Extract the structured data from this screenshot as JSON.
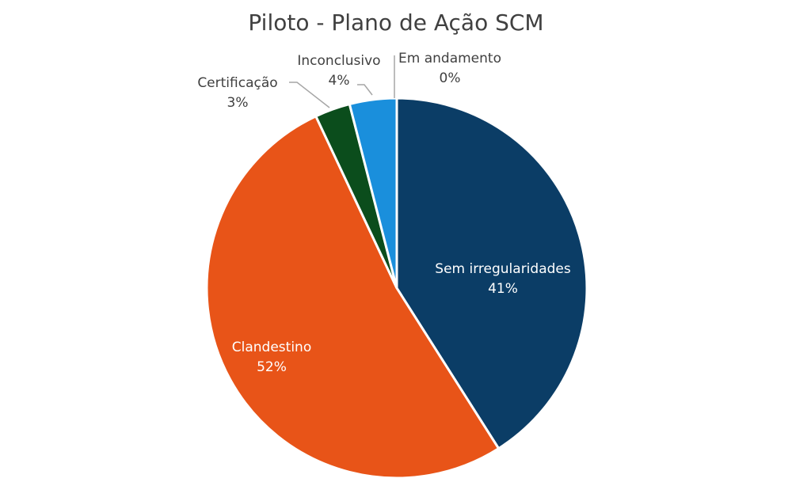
{
  "chart_data": {
    "type": "pie",
    "title": "Piloto - Plano de Ação SCM",
    "slices": [
      {
        "label": "Sem irregularidades",
        "value": 41,
        "display": "41%",
        "color": "#0b3d66",
        "label_inside": true
      },
      {
        "label": "Clandestino",
        "value": 52,
        "display": "52%",
        "color": "#e85418",
        "label_inside": true
      },
      {
        "label": "Certificação",
        "value": 3,
        "display": "3%",
        "color": "#0b4d1c",
        "label_inside": false
      },
      {
        "label": "Inconclusivo",
        "value": 4,
        "display": "4%",
        "color": "#1a8fdc",
        "label_inside": false
      },
      {
        "label": "Em andamento",
        "value": 0,
        "display": "0%",
        "color": "#7fb8e0",
        "label_inside": false
      }
    ],
    "start_angle": "top",
    "direction": "clockwise"
  }
}
